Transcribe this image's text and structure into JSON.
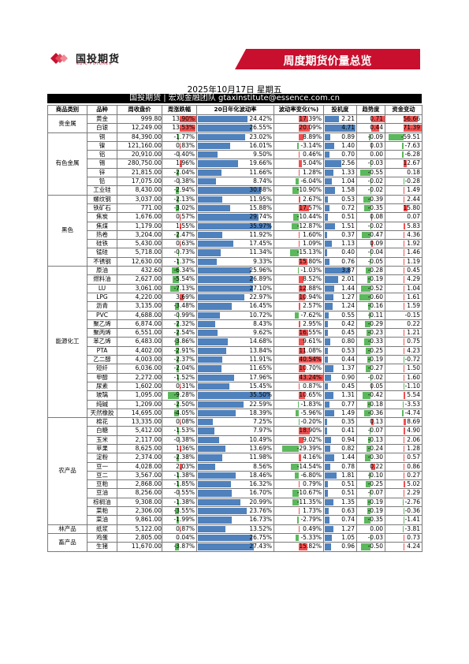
{
  "header": {
    "logo_cn": "国投期货",
    "logo_en": "SDIC FUTURES",
    "banner_title": "周度期货价量总览",
    "date": "2025年10月17日 星期五",
    "team": "国投期货 | 宏观金融团队 gtaxinstitute@essence.com.cn"
  },
  "colors": {
    "red": "#f05050",
    "green": "#5cb85c",
    "blue": "#4f81bd",
    "brand": "#c8102e"
  },
  "table": {
    "headers": [
      "商品类别",
      "品种",
      "周收盘价",
      "周涨跌幅",
      "20日年化波动率",
      "波动率变化(%)",
      "投机度",
      "趋势度",
      "资金变动"
    ],
    "groups": [
      {
        "category": "贵金属",
        "rows": [
          [
            "黄金",
            "999.80",
            13.9,
            "24.42%",
            "17.39%",
            "2.21",
            "0.71",
            "56.66"
          ],
          [
            "白银",
            "12,249.00",
            13.53,
            "26.55%",
            "20.09%",
            "4.71",
            "0.44",
            "71.39"
          ]
        ]
      },
      {
        "category": "有色金属",
        "rows": [
          [
            "铜",
            "84,390.00",
            -1.77,
            "23.02%",
            "8.89%",
            "0.89",
            "-0.09",
            "-59.51"
          ],
          [
            "镍",
            "121,160.00",
            0.83,
            "16.01%",
            "-3.14%",
            "1.40",
            "0.03",
            "-7.63"
          ],
          [
            "铝",
            "20,910.00",
            -0.4,
            "9.50%",
            "0.46%",
            "0.70",
            "0.00",
            "-6.28"
          ],
          [
            "锡",
            "280,750.00",
            1.96,
            "19.66%",
            "5.04%",
            "2.56",
            "-0.03",
            "12.67"
          ],
          [
            "锌",
            "21,815.00",
            -2.04,
            "11.66%",
            "1.28%",
            "1.33",
            "-0.55",
            "0.18"
          ],
          [
            "铅",
            "17,075.00",
            -0.38,
            "8.74%",
            "-6.04%",
            "1.04",
            "-0.02",
            "-0.28"
          ],
          [
            "工业硅",
            "8,430.00",
            -2.94,
            "30.88%",
            "-10.90%",
            "1.58",
            "-0.02",
            "1.49"
          ]
        ]
      },
      {
        "category": "黑色",
        "rows": [
          [
            "螺纹钢",
            "3,037.00",
            -2.13,
            "11.95%",
            "2.67%",
            "0.53",
            "-0.39",
            "2.44"
          ],
          [
            "铁矿石",
            "771.00",
            -3.02,
            "15.88%",
            "17.57%",
            "0.72",
            "-0.35",
            "15.80"
          ],
          [
            "焦炭",
            "1,676.00",
            0.57,
            "29.74%",
            "-10.44%",
            "0.51",
            "0.08",
            "0.07"
          ],
          [
            "焦煤",
            "1,179.00",
            1.55,
            "35.97%",
            "-12.87%",
            "1.51",
            "-0.02",
            "5.83"
          ],
          [
            "热卷",
            "3,204.00",
            -2.47,
            "11.92%",
            "1.60%",
            "0.37",
            "-0.47",
            "4.36"
          ],
          [
            "硅铁",
            "5,430.00",
            0.63,
            "17.45%",
            "1.09%",
            "1.13",
            "0.09",
            "1.92"
          ],
          [
            "锰硅",
            "5,718.00",
            -0.73,
            "11.34%",
            "-15.13%",
            "0.40",
            "-0.04",
            "1.46"
          ],
          [
            "不锈钢",
            "12,630.00",
            -1.37,
            "9.33%",
            "15.80%",
            "0.76",
            "-0.05",
            "1.19"
          ]
        ]
      },
      {
        "category": "能源化工",
        "rows": [
          [
            "原油",
            "432.60",
            -6.34,
            "25.96%",
            "-1.03%",
            "3.87",
            "-0.28",
            "0.45"
          ],
          [
            "燃料油",
            "2,627.00",
            -5.54,
            "26.89%",
            "8.52%",
            "2.01",
            "-0.19",
            "4.29"
          ],
          [
            "LU",
            "3,061.00",
            -7.13,
            "27.10%",
            "12.88%",
            "1.44",
            "-0.52",
            "1.04"
          ],
          [
            "LPG",
            "4,220.00",
            3.69,
            "22.97%",
            "10.94%",
            "1.27",
            "-0.60",
            "1.61"
          ],
          [
            "沥青",
            "3,135.00",
            -3.48,
            "16.45%",
            "2.57%",
            "1.24",
            "-0.16",
            "1.59"
          ],
          [
            "PVC",
            "4,688.00",
            -0.99,
            "10.72%",
            "-7.62%",
            "0.55",
            "-0.11",
            "-0.15"
          ],
          [
            "聚乙烯",
            "6,874.00",
            -2.32,
            "8.43%",
            "2.95%",
            "0.42",
            "-0.29",
            "0.22"
          ],
          [
            "聚丙烯",
            "6,551.00",
            -2.54,
            "9.62%",
            "16.55%",
            "0.45",
            "-0.23",
            "1.21"
          ],
          [
            "苯乙烯",
            "6,483.00",
            -3.86,
            "14.68%",
            "9.61%",
            "0.80",
            "-0.33",
            "0.75"
          ],
          [
            "PTA",
            "4,402.00",
            -2.91,
            "13.84%",
            "11.08%",
            "0.53",
            "-0.25",
            "4.23"
          ],
          [
            "乙二醇",
            "4,003.00",
            -2.37,
            "11.91%",
            "40.54%",
            "0.44",
            "-0.19",
            "-0.72"
          ],
          [
            "短纤",
            "6,036.00",
            -2.04,
            "11.65%",
            "10.70%",
            "1.37",
            "-0.27",
            "1.50"
          ],
          [
            "甲醇",
            "2,272.00",
            -1.52,
            "17.96%",
            "43.24%",
            "0.90",
            "-0.02",
            "1.60"
          ],
          [
            "尿素",
            "1,602.00",
            0.31,
            "15.45%",
            "0.87%",
            "0.45",
            "0.05",
            "-1.10"
          ],
          [
            "玻璃",
            "1,095.00",
            -9.28,
            "35.50%",
            "10.65%",
            "1.31",
            "-0.42",
            "5.54"
          ],
          [
            "纯碱",
            "1,209.00",
            -2.5,
            "22.59%",
            "-1.83%",
            "0.77",
            "-0.18",
            "-3.53"
          ],
          [
            "天然橡胶",
            "14,695.00",
            -4.05,
            "18.39%",
            "-5.96%",
            "1.49",
            "-0.36",
            "-4.74"
          ]
        ]
      },
      {
        "category": "农产品",
        "rows": [
          [
            "棉花",
            "13,335.00",
            0.08,
            "7.25%",
            "-0.20%",
            "0.35",
            "0.13",
            "8.69"
          ],
          [
            "白糖",
            "5,412.00",
            -1.53,
            "7.97%",
            "18.90%",
            "0.41",
            "-0.07",
            "4.90"
          ],
          [
            "玉米",
            "2,117.00",
            -0.38,
            "10.49%",
            "9.02%",
            "0.94",
            "-0.13",
            "2.06"
          ],
          [
            "苹果",
            "8,625.00",
            1.36,
            "13.69%",
            "-29.39%",
            "0.82",
            "-0.24",
            "1.28"
          ],
          [
            "淀粉",
            "2,374.00",
            -2.38,
            "11.98%",
            "4.16%",
            "1.44",
            "-0.30",
            "0.57"
          ],
          [
            "豆一",
            "4,028.00",
            2.03,
            "8.56%",
            "-14.54%",
            "0.78",
            "0.22",
            "0.86"
          ],
          [
            "豆二",
            "3,567.00",
            -1.38,
            "18.46%",
            "-6.80%",
            "1.81",
            "-0.10",
            "0.27"
          ],
          [
            "豆粕",
            "2,868.00",
            -1.85,
            "16.32%",
            "0.79%",
            "0.51",
            "-0.25",
            "5.02"
          ],
          [
            "豆油",
            "8,256.00",
            -0.55,
            "16.70%",
            "-10.67%",
            "0.51",
            "-0.07",
            "2.29"
          ],
          [
            "棕榈油",
            "9,308.00",
            -1.38,
            "20.99%",
            "-11.35%",
            "1.35",
            "-0.19",
            "-2.76"
          ],
          [
            "菜粕",
            "2,306.00",
            -3.55,
            "23.76%",
            "1.73%",
            "0.63",
            "-0.19",
            "-0.36"
          ],
          [
            "菜油",
            "9,861.00",
            -1.99,
            "16.73%",
            "-2.79%",
            "0.74",
            "-0.35",
            "-1.41"
          ]
        ]
      },
      {
        "category": "林产品",
        "rows": [
          [
            "纸浆",
            "5,122.00",
            0.87,
            "13.52%",
            "0.49%",
            "1.27",
            "0.00",
            "-3.81"
          ]
        ]
      },
      {
        "category": "畜产品",
        "rows": [
          [
            "鸡蛋",
            "2,805.00",
            0.04,
            "26.75%",
            "-5.33%",
            "1.05",
            "-0.03",
            "0.73"
          ],
          [
            "生猪",
            "11,670.00",
            -3.87,
            "27.43%",
            "15.82%",
            "0.96",
            "-0.50",
            "4.24"
          ]
        ]
      }
    ]
  }
}
